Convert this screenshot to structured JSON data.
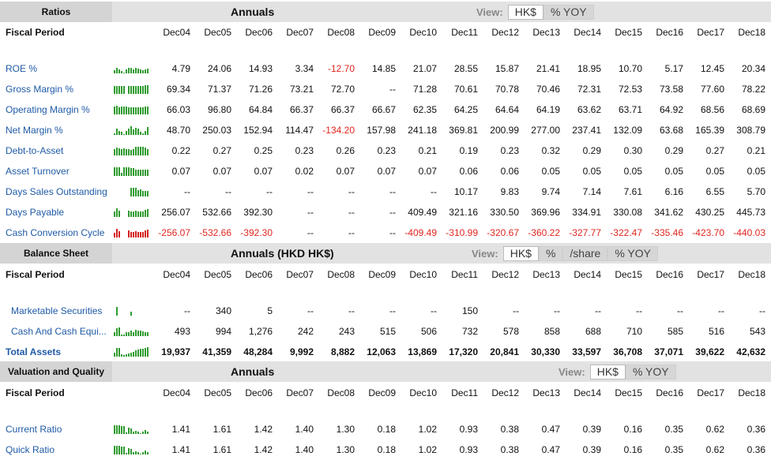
{
  "periods": [
    "Dec04",
    "Dec05",
    "Dec06",
    "Dec07",
    "Dec08",
    "Dec09",
    "Dec10",
    "Dec11",
    "Dec12",
    "Dec13",
    "Dec14",
    "Dec15",
    "Dec16",
    "Dec17",
    "Dec18"
  ],
  "colors": {
    "link": "#1f5aa6",
    "negative": "#e0261f",
    "spark_positive": "#2f9b2f",
    "spark_negative": "#d42020"
  },
  "sections": {
    "ratios": {
      "title": "Ratios",
      "annuals": "Annuals",
      "view_label": "View:",
      "view_options": [
        "HK$",
        "% YOY"
      ],
      "fiscal_label": "Fiscal Period",
      "rows": [
        {
          "label": "ROE %",
          "spark": [
            30,
            60,
            45,
            25,
            5,
            45,
            55,
            62,
            45,
            55,
            50,
            40,
            30,
            38,
            52
          ],
          "values": [
            "4.79",
            "24.06",
            "14.93",
            "3.34",
            "-12.70",
            "14.85",
            "21.07",
            "28.55",
            "15.87",
            "21.41",
            "18.95",
            "10.70",
            "5.17",
            "12.45",
            "20.34"
          ]
        },
        {
          "label": "Gross Margin %",
          "spark": [
            80,
            85,
            85,
            85,
            85,
            0,
            85,
            85,
            85,
            85,
            85,
            85,
            85,
            90,
            90
          ],
          "values": [
            "69.34",
            "71.37",
            "71.26",
            "73.21",
            "72.70",
            "--",
            "71.28",
            "70.61",
            "70.78",
            "70.46",
            "72.31",
            "72.53",
            "73.58",
            "77.60",
            "78.22"
          ]
        },
        {
          "label": "Operating Margin %",
          "spark": [
            80,
            95,
            78,
            80,
            80,
            80,
            76,
            78,
            78,
            78,
            76,
            77,
            78,
            82,
            82
          ],
          "values": [
            "66.03",
            "96.80",
            "64.84",
            "66.37",
            "66.37",
            "66.67",
            "62.35",
            "64.25",
            "64.64",
            "64.19",
            "63.62",
            "63.71",
            "64.92",
            "68.56",
            "68.69"
          ]
        },
        {
          "label": "Net Margin %",
          "spark": [
            20,
            70,
            42,
            33,
            5,
            43,
            65,
            95,
            55,
            75,
            65,
            37,
            20,
            45,
            82
          ],
          "values": [
            "48.70",
            "250.03",
            "152.94",
            "114.47",
            "-134.20",
            "157.98",
            "241.18",
            "369.81",
            "200.99",
            "277.00",
            "237.41",
            "132.09",
            "63.68",
            "165.39",
            "308.79"
          ]
        },
        {
          "label": "Debt-to-Asset",
          "spark": [
            65,
            80,
            75,
            70,
            78,
            70,
            65,
            60,
            70,
            95,
            88,
            90,
            88,
            82,
            65
          ],
          "values": [
            "0.22",
            "0.27",
            "0.25",
            "0.23",
            "0.26",
            "0.23",
            "0.21",
            "0.19",
            "0.23",
            "0.32",
            "0.29",
            "0.30",
            "0.29",
            "0.27",
            "0.21"
          ]
        },
        {
          "label": "Asset Turnover",
          "spark": [
            95,
            95,
            95,
            30,
            95,
            95,
            95,
            85,
            85,
            70,
            70,
            70,
            70,
            70,
            70
          ],
          "values": [
            "0.07",
            "0.07",
            "0.07",
            "0.02",
            "0.07",
            "0.07",
            "0.07",
            "0.06",
            "0.06",
            "0.05",
            "0.05",
            "0.05",
            "0.05",
            "0.05",
            "0.05"
          ]
        },
        {
          "label": "Days Sales Outstanding",
          "spark": [
            0,
            0,
            0,
            0,
            0,
            0,
            0,
            95,
            90,
            90,
            70,
            72,
            58,
            62,
            55
          ],
          "values": [
            "--",
            "--",
            "--",
            "--",
            "--",
            "--",
            "--",
            "10.17",
            "9.83",
            "9.74",
            "7.14",
            "7.61",
            "6.16",
            "6.55",
            "5.70"
          ]
        },
        {
          "label": "Days Payable",
          "spark": [
            55,
            95,
            70,
            0,
            0,
            0,
            70,
            58,
            60,
            68,
            62,
            60,
            62,
            78,
            82
          ],
          "values": [
            "256.07",
            "532.66",
            "392.30",
            "--",
            "--",
            "--",
            "409.49",
            "321.16",
            "330.50",
            "369.96",
            "334.91",
            "330.08",
            "341.62",
            "430.25",
            "445.73"
          ]
        },
        {
          "label": "Cash Conversion Cycle",
          "spark": [
            50,
            95,
            70,
            0,
            0,
            0,
            75,
            58,
            60,
            65,
            60,
            60,
            62,
            78,
            80
          ],
          "spark_negative": true,
          "values": [
            "-256.07",
            "-532.66",
            "-392.30",
            "--",
            "--",
            "--",
            "-409.49",
            "-310.99",
            "-320.67",
            "-360.22",
            "-327.77",
            "-322.47",
            "-335.46",
            "-423.70",
            "-440.03"
          ]
        }
      ]
    },
    "balance": {
      "title": "Balance Sheet",
      "annuals": "Annuals (HKD HK$)",
      "view_label": "View:",
      "view_options": [
        "HK$",
        "%",
        "/share",
        "% YOY"
      ],
      "fiscal_label": "Fiscal Period",
      "rows": [
        {
          "label": "Marketable Securities",
          "indent": true,
          "spark": [
            0,
            95,
            0,
            0,
            0,
            0,
            0,
            45,
            0,
            0,
            0,
            0,
            0,
            0,
            0
          ],
          "values": [
            "--",
            "340",
            "5",
            "--",
            "--",
            "--",
            "--",
            "150",
            "--",
            "--",
            "--",
            "--",
            "--",
            "--",
            "--"
          ]
        },
        {
          "label": "Cash And Cash Equi...",
          "indent": true,
          "spark": [
            40,
            80,
            95,
            20,
            20,
            40,
            40,
            58,
            45,
            68,
            55,
            56,
            46,
            41,
            43
          ],
          "values": [
            "493",
            "994",
            "1,276",
            "242",
            "243",
            "515",
            "506",
            "732",
            "578",
            "858",
            "688",
            "710",
            "585",
            "516",
            "543"
          ]
        },
        {
          "label": "Total Assets",
          "bold": true,
          "spark": [
            40,
            90,
            95,
            22,
            20,
            28,
            32,
            40,
            48,
            70,
            78,
            85,
            87,
            92,
            97
          ],
          "values": [
            "19,937",
            "41,359",
            "48,284",
            "9,992",
            "8,882",
            "12,063",
            "13,869",
            "17,320",
            "20,841",
            "30,330",
            "33,597",
            "36,708",
            "37,071",
            "39,622",
            "42,632"
          ]
        }
      ]
    },
    "valuation": {
      "title": "Valuation and Quality",
      "annuals": "Annuals",
      "view_label": "View:",
      "view_options": [
        "HK$",
        "% YOY"
      ],
      "fiscal_label": "Fiscal Period",
      "rows": [
        {
          "label": "Current Ratio",
          "spark": [
            88,
            95,
            88,
            86,
            80,
            15,
            63,
            58,
            25,
            30,
            25,
            12,
            22,
            40,
            23
          ],
          "values": [
            "1.41",
            "1.61",
            "1.42",
            "1.40",
            "1.30",
            "0.18",
            "1.02",
            "0.93",
            "0.38",
            "0.47",
            "0.39",
            "0.16",
            "0.35",
            "0.62",
            "0.36"
          ]
        },
        {
          "label": "Quick Ratio",
          "spark": [
            88,
            95,
            88,
            86,
            80,
            15,
            63,
            58,
            25,
            30,
            25,
            12,
            22,
            40,
            23
          ],
          "values": [
            "1.41",
            "1.61",
            "1.42",
            "1.40",
            "1.30",
            "0.18",
            "1.02",
            "0.93",
            "0.38",
            "0.47",
            "0.39",
            "0.16",
            "0.35",
            "0.62",
            "0.36"
          ]
        }
      ]
    }
  }
}
